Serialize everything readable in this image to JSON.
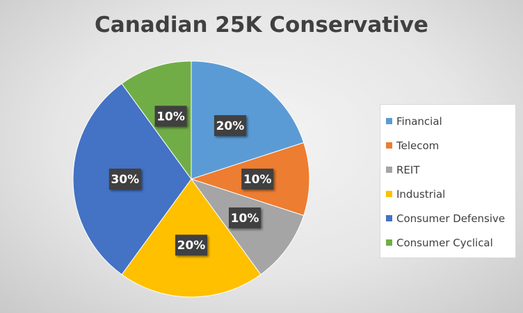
{
  "chart_data": {
    "type": "pie",
    "title": "Canadian 25K Conservative",
    "legend_position": "right",
    "slices": [
      {
        "label": "Financial",
        "value": 20,
        "display": "20%",
        "color": "#5b9bd5"
      },
      {
        "label": "Telecom",
        "value": 10,
        "display": "10%",
        "color": "#ed7d31"
      },
      {
        "label": "REIT",
        "value": 10,
        "display": "10%",
        "color": "#a5a5a5"
      },
      {
        "label": "Industrial",
        "value": 20,
        "display": "20%",
        "color": "#ffc000"
      },
      {
        "label": "Consumer Defensive",
        "value": 30,
        "display": "30%",
        "color": "#4472c4"
      },
      {
        "label": "Consumer Cyclical",
        "value": 10,
        "display": "10%",
        "color": "#70ad47"
      }
    ]
  }
}
